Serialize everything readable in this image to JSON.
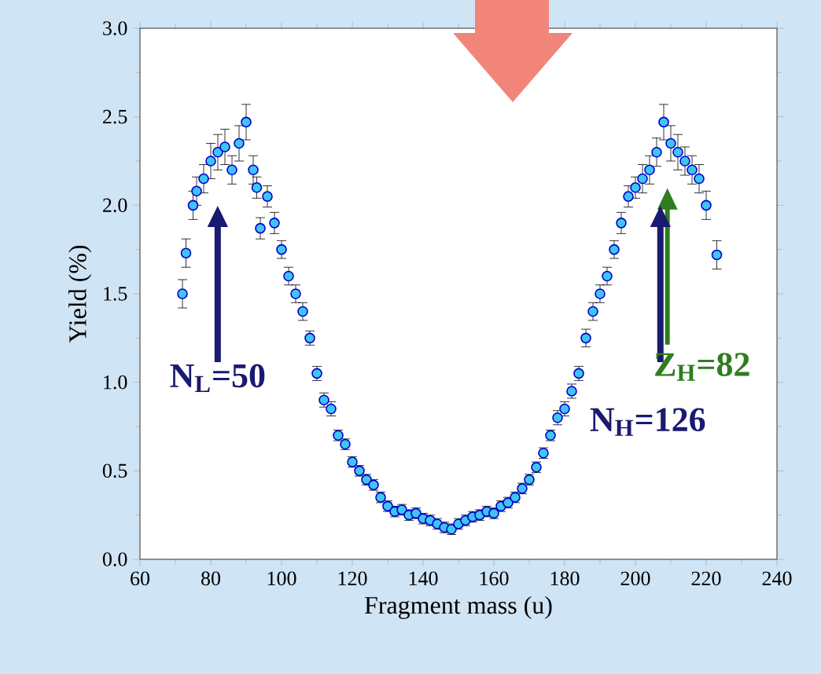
{
  "chart_data": {
    "type": "scatter",
    "xlabel": "Fragment mass (u)",
    "ylabel": "Yield (%)",
    "x": [
      72,
      73,
      75,
      76,
      78,
      80,
      82,
      84,
      86,
      88,
      90,
      92,
      93,
      94,
      96,
      98,
      100,
      102,
      104,
      106,
      108,
      110,
      112,
      114,
      116,
      118,
      120,
      122,
      124,
      126,
      128,
      130,
      132,
      134,
      136,
      138,
      140,
      142,
      144,
      146,
      148,
      150,
      152,
      154,
      156,
      158,
      160,
      162,
      164,
      166,
      168,
      170,
      172,
      174,
      176,
      178,
      180,
      182,
      184,
      186,
      188,
      190,
      192,
      194,
      196,
      198,
      200,
      202,
      204,
      206,
      208,
      210,
      212,
      214,
      216,
      218,
      220,
      223
    ],
    "values": [
      1.5,
      1.73,
      2.0,
      2.08,
      2.15,
      2.25,
      2.3,
      2.33,
      2.2,
      2.35,
      2.47,
      2.2,
      2.1,
      1.87,
      2.05,
      1.9,
      1.75,
      1.6,
      1.5,
      1.4,
      1.25,
      1.05,
      0.9,
      0.85,
      0.7,
      0.65,
      0.55,
      0.5,
      0.45,
      0.42,
      0.35,
      0.3,
      0.27,
      0.28,
      0.25,
      0.26,
      0.23,
      0.22,
      0.2,
      0.18,
      0.17,
      0.2,
      0.22,
      0.24,
      0.25,
      0.27,
      0.26,
      0.3,
      0.32,
      0.35,
      0.4,
      0.45,
      0.52,
      0.6,
      0.7,
      0.8,
      0.85,
      0.95,
      1.05,
      1.25,
      1.4,
      1.5,
      1.6,
      1.75,
      1.9,
      2.05,
      2.1,
      2.15,
      2.2,
      2.3,
      2.47,
      2.35,
      2.3,
      2.25,
      2.2,
      2.15,
      2.0,
      1.72
    ],
    "errors": [
      0.08,
      0.08,
      0.08,
      0.08,
      0.08,
      0.1,
      0.1,
      0.1,
      0.08,
      0.1,
      0.1,
      0.08,
      0.06,
      0.06,
      0.06,
      0.06,
      0.05,
      0.05,
      0.05,
      0.05,
      0.04,
      0.04,
      0.04,
      0.04,
      0.03,
      0.03,
      0.03,
      0.03,
      0.03,
      0.03,
      0.03,
      0.03,
      0.03,
      0.03,
      0.03,
      0.03,
      0.03,
      0.03,
      0.03,
      0.03,
      0.03,
      0.03,
      0.03,
      0.03,
      0.03,
      0.03,
      0.03,
      0.03,
      0.03,
      0.03,
      0.03,
      0.03,
      0.03,
      0.03,
      0.03,
      0.04,
      0.04,
      0.04,
      0.04,
      0.05,
      0.05,
      0.05,
      0.05,
      0.05,
      0.06,
      0.06,
      0.06,
      0.08,
      0.08,
      0.08,
      0.1,
      0.1,
      0.1,
      0.08,
      0.08,
      0.08,
      0.08,
      0.08
    ],
    "color": "#40c4f4",
    "xlim": [
      60,
      240
    ],
    "xticks": [
      60,
      80,
      100,
      120,
      140,
      160,
      180,
      200,
      220,
      240
    ],
    "ylim": [
      0,
      3
    ],
    "yticks": [
      {
        "value": 0,
        "label": "0.0"
      },
      {
        "value": 0.5,
        "label": "0.5"
      },
      {
        "value": 1,
        "label": "1.0"
      },
      {
        "value": 1.5,
        "label": "1.5"
      },
      {
        "value": 2,
        "label": "2.0"
      },
      {
        "value": 2.5,
        "label": "2.5"
      },
      {
        "value": 3,
        "label": "3.0"
      }
    ],
    "grid": false,
    "annotations": [
      "N$_{L}$=50",
      "Z$_{H}$=82",
      "N$_{H}$=126"
    ]
  }
}
